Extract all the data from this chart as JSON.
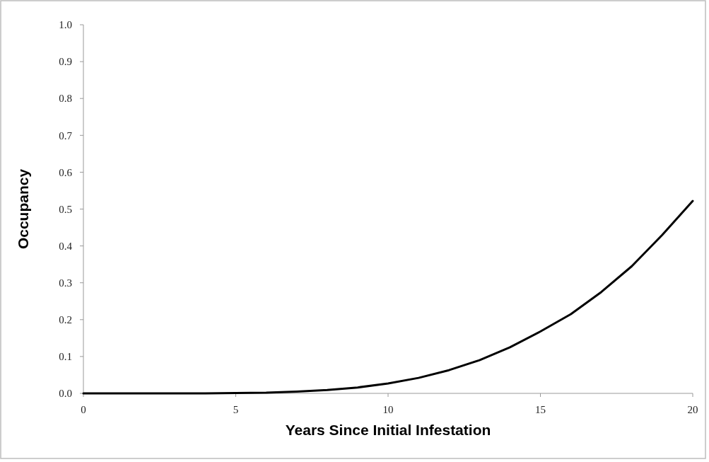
{
  "chart_data": {
    "type": "line",
    "xlabel": "Years Since Initial Infestation",
    "ylabel": "Occupancy",
    "x": [
      0,
      1,
      2,
      3,
      4,
      5,
      6,
      7,
      8,
      9,
      10,
      11,
      12,
      13,
      14,
      15,
      16,
      17,
      18,
      19,
      20
    ],
    "series": [
      {
        "color": "#000000",
        "values": [
          0,
          0,
          0,
          0,
          0,
          0.001,
          0.002,
          0.005,
          0.009,
          0.016,
          0.027,
          0.042,
          0.063,
          0.09,
          0.125,
          0.168,
          0.215,
          0.275,
          0.345,
          0.43,
          0.522
        ]
      }
    ],
    "xlim": [
      0,
      20
    ],
    "xticks": [
      0,
      5,
      10,
      15,
      20
    ],
    "ylim": [
      0,
      1
    ],
    "yticks": [
      {
        "value": 0,
        "label": "0.0"
      },
      {
        "value": 0.1,
        "label": "0.1"
      },
      {
        "value": 0.2,
        "label": "0.2"
      },
      {
        "value": 0.3,
        "label": "0.3"
      },
      {
        "value": 0.4,
        "label": "0.4"
      },
      {
        "value": 0.5,
        "label": "0.5"
      },
      {
        "value": 0.6,
        "label": "0.6"
      },
      {
        "value": 0.7,
        "label": "0.7"
      },
      {
        "value": 0.8,
        "label": "0.8"
      },
      {
        "value": 0.9,
        "label": "0.9"
      },
      {
        "value": 1,
        "label": "1.0"
      }
    ],
    "marker": "none",
    "line_style": "solid"
  }
}
